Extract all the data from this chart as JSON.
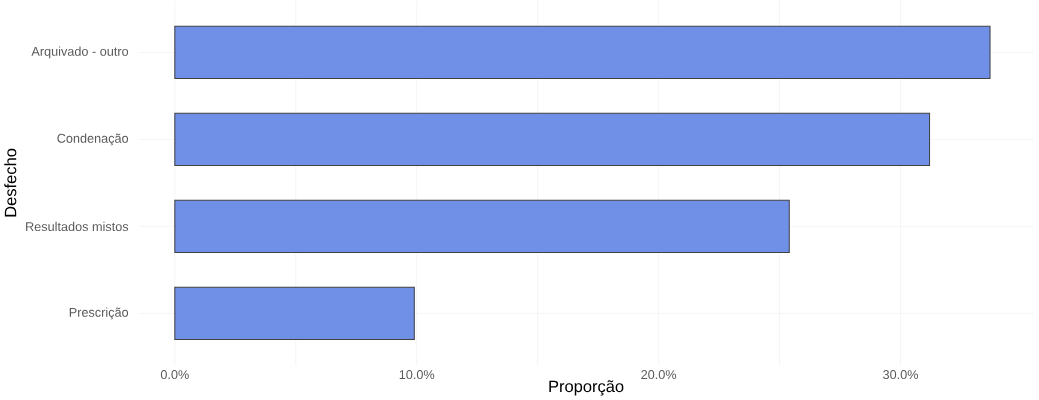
{
  "chart_data": {
    "type": "bar",
    "orientation": "horizontal",
    "xlabel": "Proporção",
    "ylabel": "Desfecho",
    "categories": [
      "Arquivado - outro",
      "Condenação",
      "Resultados mistos",
      "Prescrição"
    ],
    "values": [
      33.7,
      31.2,
      25.4,
      9.9
    ],
    "color": "#7090e8",
    "xlim": [
      -1.5,
      35.5
    ],
    "xticks": [
      {
        "value": 0,
        "label": "0.0%"
      },
      {
        "value": 5,
        "label": null
      },
      {
        "value": 10,
        "label": "10.0%"
      },
      {
        "value": 15,
        "label": null
      },
      {
        "value": 20,
        "label": "20.0%"
      },
      {
        "value": 25,
        "label": null
      },
      {
        "value": 30,
        "label": "30.0%"
      }
    ],
    "grid": true
  }
}
